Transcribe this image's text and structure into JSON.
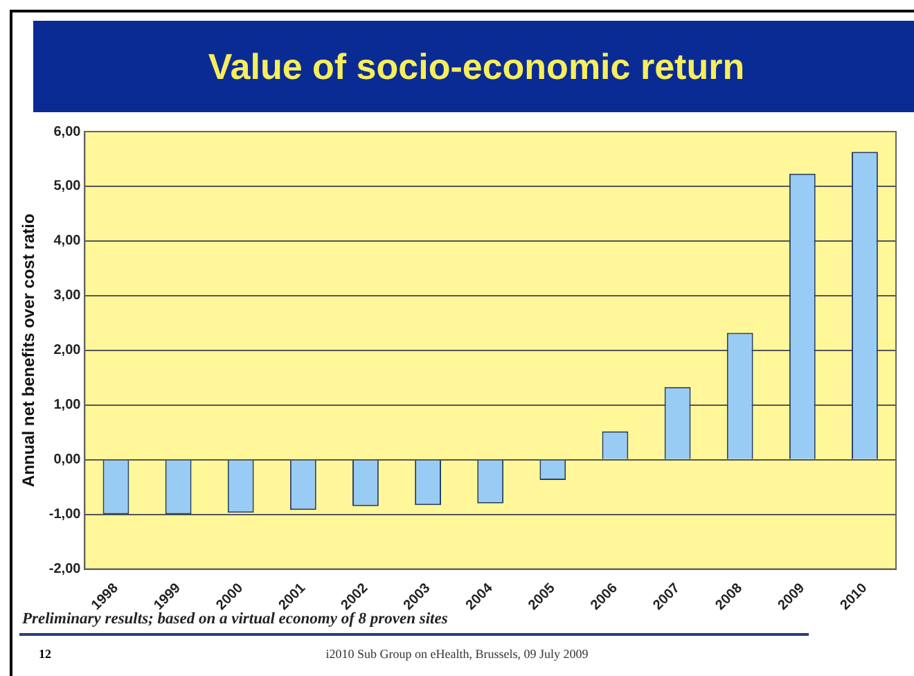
{
  "chart_data": {
    "type": "bar",
    "title": "Value of socio-economic return",
    "ylabel": "Annual net benefits over cost ratio",
    "categories": [
      "1998",
      "1999",
      "2000",
      "2001",
      "2002",
      "2003",
      "2004",
      "2005",
      "2006",
      "2007",
      "2008",
      "2009",
      "2010"
    ],
    "values": [
      -1.0,
      -1.0,
      -0.97,
      -0.92,
      -0.85,
      -0.83,
      -0.8,
      -0.37,
      0.52,
      1.33,
      2.32,
      5.23,
      5.63
    ],
    "color": "#99ccf5",
    "ylim": [
      -2,
      6
    ],
    "yticks": [
      {
        "value": -2,
        "label": "-2,00"
      },
      {
        "value": -1,
        "label": "-1,00"
      },
      {
        "value": 0,
        "label": "0,00"
      },
      {
        "value": 1,
        "label": "1,00"
      },
      {
        "value": 2,
        "label": "2,00"
      },
      {
        "value": 3,
        "label": "3,00"
      },
      {
        "value": 4,
        "label": "4,00"
      },
      {
        "value": 5,
        "label": "5,00"
      },
      {
        "value": 6,
        "label": "6,00"
      }
    ],
    "grid": "y",
    "legend": false,
    "annotations": [
      "Preliminary results; based on a virtual economy of 8 proven sites",
      "i2010 Sub Group on eHealth, Brussels, 09 July 2009",
      "12"
    ]
  }
}
